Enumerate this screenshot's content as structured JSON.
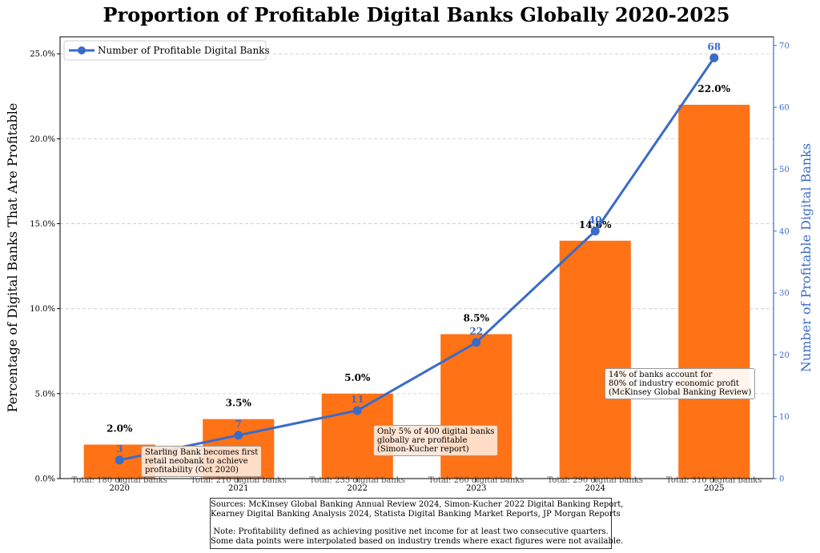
{
  "chart_data": {
    "type": "bar+line",
    "title": "Proportion of Profitable Digital Banks Globally 2020-2025",
    "ylabel_left": "Percentage of Digital Banks That Are Profitable",
    "ylabel_right": "Number of Profitable Digital Banks",
    "categories": [
      "2020",
      "2021",
      "2022",
      "2023",
      "2024",
      "2025"
    ],
    "bar_values": [
      2.0,
      3.5,
      5.0,
      8.5,
      14.0,
      22.0
    ],
    "bar_labels": [
      "2.0%",
      "3.5%",
      "5.0%",
      "8.5%",
      "14.0%",
      "22.0%"
    ],
    "line_name": "Number of Profitable Digital Banks",
    "line_values": [
      3,
      7,
      11,
      22,
      40,
      68
    ],
    "totals": [
      "Total: 180 digital banks",
      "Total: 210 digital banks",
      "Total: 235 digital banks",
      "Total: 260 digital banks",
      "Total: 290 digital banks",
      "Total: 310 digital banks"
    ],
    "ylim_left": [
      0,
      26.0
    ],
    "yticks_left": [
      "0.0%",
      "5.0%",
      "10.0%",
      "15.0%",
      "20.0%",
      "25.0%"
    ],
    "ylim_right": [
      0,
      71.4
    ],
    "yticks_right": [
      "0",
      "10",
      "20",
      "30",
      "40",
      "50",
      "60",
      "70"
    ],
    "grid": true,
    "legend": "top-left",
    "colors": {
      "bar": "#FF7216",
      "line": "#3A6BC8"
    },
    "annotations": [
      {
        "text": "Starling Bank becomes first\nretail neobank to achieve\nprofitability (Oct 2020)"
      },
      {
        "text": "Only 5% of 400 digital banks\nglobally are profitable\n(Simon-Kucher report)"
      },
      {
        "text": "14% of banks account for\n80% of industry economic profit\n(McKinsey Global Banking Review)"
      }
    ]
  },
  "sources": {
    "line1": "Sources: McKinsey Global Banking Annual Review 2024, Simon-Kucher 2022 Digital Banking Report,",
    "line2": "Kearney Digital Banking Analysis 2024, Statista Digital Banking Market Reports, JP Morgan Reports",
    "line3": "Note: Profitability defined as achieving positive net income for at least two consecutive quarters.",
    "line4": "Some data points were interpolated based on industry trends where exact figures were not available."
  }
}
